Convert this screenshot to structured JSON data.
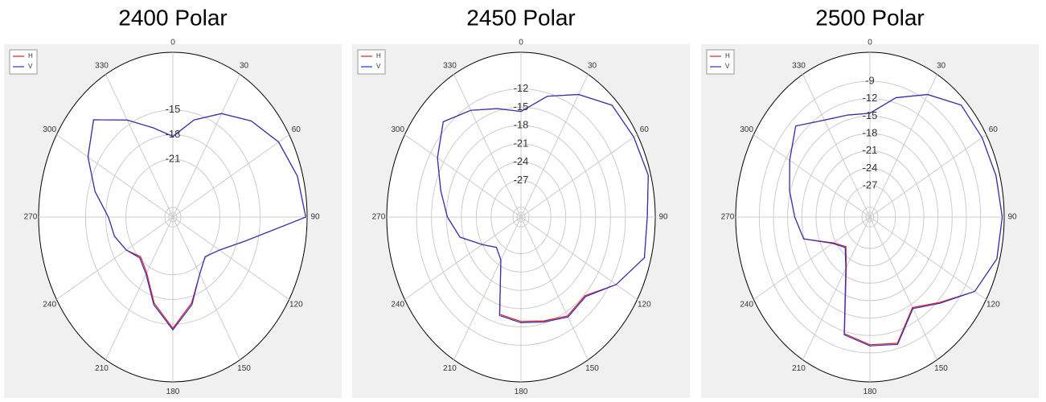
{
  "chart_data": [
    {
      "type": "polar",
      "title": "2400 Polar",
      "legend": "upper left",
      "theta": [
        0,
        15,
        30,
        45,
        60,
        75,
        90,
        105,
        120,
        135,
        150,
        165,
        180,
        195,
        210,
        225,
        240,
        255,
        270,
        285,
        300,
        315,
        330,
        345
      ],
      "thetaticks": [
        0,
        30,
        60,
        90,
        120,
        150,
        180,
        210,
        240,
        270,
        300,
        330
      ],
      "rlim": [
        -28,
        -8
      ],
      "rticks": [
        -21,
        -18,
        -15
      ],
      "series": [
        {
          "name": "H",
          "color": "#e02020",
          "values": [
            -18.2,
            -15.8,
            -13.5,
            -11.5,
            -9.8,
            -8.8,
            -8.2,
            -16.8,
            -20.0,
            -21.2,
            -20.0,
            -17.2,
            -14.5,
            -17.2,
            -20.2,
            -21.2,
            -20.0,
            -19.0,
            -18.4,
            -16.0,
            -13.4,
            -11.3,
            -14.4,
            -16.8
          ]
        },
        {
          "name": "V",
          "color": "#3030c0",
          "values": [
            -18.2,
            -15.8,
            -13.5,
            -11.5,
            -9.8,
            -8.8,
            -8.2,
            -16.8,
            -20.0,
            -21.2,
            -20.0,
            -17.0,
            -14.3,
            -17.0,
            -20.0,
            -21.0,
            -20.0,
            -19.0,
            -18.4,
            -16.0,
            -13.4,
            -11.3,
            -14.4,
            -16.8
          ]
        }
      ]
    },
    {
      "type": "polar",
      "title": "2450 Polar",
      "legend": "upper left",
      "theta": [
        0,
        15,
        30,
        45,
        60,
        75,
        90,
        105,
        120,
        135,
        150,
        165,
        180,
        195,
        210,
        225,
        240,
        255,
        270,
        285,
        300,
        315,
        330,
        345
      ],
      "thetaticks": [
        0,
        30,
        60,
        90,
        120,
        150,
        180,
        210,
        240,
        270,
        300,
        330
      ],
      "rlim": [
        -33,
        -6
      ],
      "rticks": [
        -27,
        -24,
        -21,
        -18,
        -15,
        -12
      ],
      "series": [
        {
          "name": "H",
          "color": "#e02020",
          "values": [
            -15.7,
            -12.5,
            -9.8,
            -7.1,
            -6.8,
            -6.5,
            -7.6,
            -7.3,
            -10.9,
            -14.8,
            -14.3,
            -15.4,
            -15.9,
            -16.5,
            -24.9,
            -26.0,
            -24.0,
            -20.3,
            -18.2,
            -16.3,
            -13.6,
            -10.9,
            -12.8,
            -14.6
          ]
        },
        {
          "name": "V",
          "color": "#3030c0",
          "values": [
            -15.7,
            -12.5,
            -9.8,
            -7.1,
            -6.8,
            -6.5,
            -7.6,
            -7.3,
            -10.9,
            -14.6,
            -14.1,
            -15.2,
            -15.7,
            -16.3,
            -24.9,
            -26.0,
            -24.0,
            -20.3,
            -18.2,
            -16.3,
            -13.6,
            -10.9,
            -12.8,
            -14.6
          ]
        }
      ]
    },
    {
      "type": "polar",
      "title": "2500 Polar",
      "legend": "upper left",
      "theta": [
        0,
        15,
        30,
        45,
        60,
        75,
        90,
        105,
        120,
        135,
        150,
        165,
        180,
        195,
        210,
        225,
        240,
        255,
        270,
        285,
        300,
        315,
        330,
        345
      ],
      "thetaticks": [
        0,
        30,
        60,
        90,
        120,
        150,
        180,
        210,
        240,
        270,
        300,
        330
      ],
      "rlim": [
        -32.4,
        -4
      ],
      "rticks": [
        -27,
        -24,
        -21,
        -18,
        -15,
        -12,
        -9
      ],
      "series": [
        {
          "name": "H",
          "color": "#e02020",
          "values": [
            -14.5,
            -11.1,
            -8.0,
            -5.1,
            -5.0,
            -4.8,
            -4.4,
            -4.6,
            -6.8,
            -11.6,
            -14.4,
            -9.9,
            -10.4,
            -11.6,
            -22.4,
            -25.2,
            -23.5,
            -17.9,
            -16.5,
            -14.8,
            -12.8,
            -10.2,
            -13.1,
            -14.2
          ]
        },
        {
          "name": "V",
          "color": "#3030c0",
          "values": [
            -14.5,
            -11.1,
            -8.0,
            -5.1,
            -5.0,
            -4.8,
            -4.4,
            -4.6,
            -6.8,
            -11.4,
            -14.2,
            -9.7,
            -10.2,
            -11.4,
            -22.2,
            -25.0,
            -23.3,
            -17.9,
            -16.5,
            -14.8,
            -12.8,
            -10.2,
            -13.1,
            -14.2
          ]
        }
      ]
    }
  ]
}
